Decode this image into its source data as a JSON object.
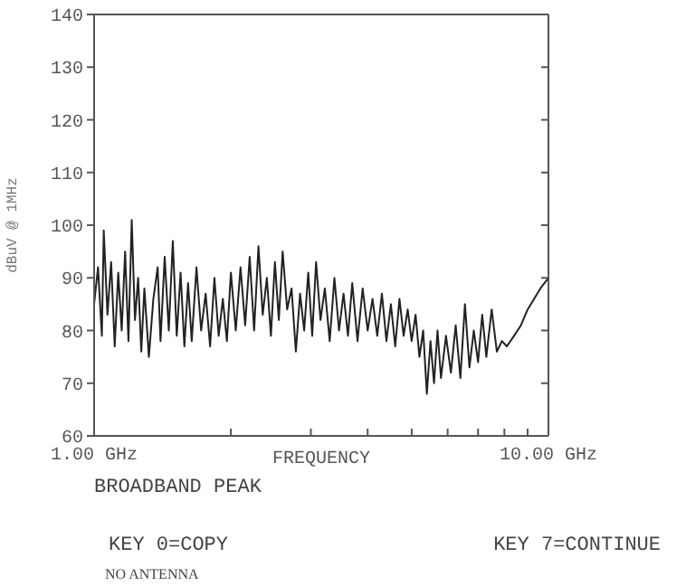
{
  "chart_data": {
    "type": "line",
    "xlabel": "FREQUENCY",
    "ylabel": "dBuV @ 1MHz",
    "log": "x",
    "xlim": [
      1,
      10
    ],
    "xticks": [
      {
        "value": 1,
        "label": "1.00 GHz"
      },
      {
        "value": 2,
        "label": null
      },
      {
        "value": 3,
        "label": null
      },
      {
        "value": 4,
        "label": null
      },
      {
        "value": 5,
        "label": null
      },
      {
        "value": 6,
        "label": null
      },
      {
        "value": 7,
        "label": null
      },
      {
        "value": 8,
        "label": null
      },
      {
        "value": 9,
        "label": null
      },
      {
        "value": 10,
        "label": "10.00 GHz"
      }
    ],
    "ylim": [
      60,
      140
    ],
    "yticks": [
      60,
      70,
      80,
      90,
      100,
      110,
      120,
      130,
      140
    ],
    "marker": "none",
    "line_style": "solid",
    "annotations": [
      "BROADBAND PEAK",
      "KEY 0=COPY",
      "KEY 7=CONTINUE",
      "NO ANTENNA"
    ],
    "x": [
      1.0,
      1.02,
      1.04,
      1.05,
      1.07,
      1.09,
      1.11,
      1.13,
      1.15,
      1.17,
      1.19,
      1.21,
      1.23,
      1.25,
      1.27,
      1.29,
      1.32,
      1.35,
      1.38,
      1.4,
      1.43,
      1.46,
      1.49,
      1.52,
      1.55,
      1.58,
      1.61,
      1.64,
      1.68,
      1.72,
      1.76,
      1.8,
      1.84,
      1.88,
      1.92,
      1.96,
      2.0,
      2.05,
      2.1,
      2.15,
      2.2,
      2.25,
      2.3,
      2.35,
      2.4,
      2.45,
      2.5,
      2.55,
      2.6,
      2.66,
      2.72,
      2.78,
      2.84,
      2.9,
      2.96,
      3.02,
      3.08,
      3.15,
      3.22,
      3.3,
      3.38,
      3.46,
      3.54,
      3.62,
      3.7,
      3.8,
      3.9,
      4.0,
      4.1,
      4.2,
      4.3,
      4.4,
      4.5,
      4.6,
      4.7,
      4.8,
      4.9,
      5.0,
      5.1,
      5.2,
      5.3,
      5.4,
      5.5,
      5.6,
      5.7,
      5.8,
      5.95,
      6.1,
      6.25,
      6.4,
      6.55,
      6.7,
      6.85,
      7.0,
      7.15,
      7.3,
      7.5,
      7.7,
      7.9,
      8.1,
      8.4,
      8.7,
      9.0,
      9.3,
      9.6,
      10.0
    ],
    "series": [
      {
        "color": "#222222",
        "values": [
          85,
          92,
          79,
          99,
          83,
          93,
          77,
          91,
          80,
          95,
          78,
          101,
          82,
          90,
          76,
          88,
          75,
          86,
          92,
          78,
          94,
          80,
          97,
          79,
          91,
          77,
          89,
          78,
          92,
          80,
          87,
          77,
          90,
          79,
          86,
          78,
          91,
          80,
          92,
          81,
          94,
          80,
          96,
          83,
          90,
          79,
          93,
          82,
          95,
          84,
          88,
          76,
          87,
          80,
          91,
          79,
          93,
          82,
          88,
          78,
          90,
          80,
          87,
          79,
          89,
          78,
          88,
          80,
          86,
          79,
          87,
          78,
          85,
          77,
          86,
          79,
          84,
          78,
          83,
          75,
          80,
          68,
          78,
          70,
          80,
          71,
          79,
          72,
          81,
          71,
          85,
          73,
          80,
          74,
          83,
          75,
          84,
          76,
          78,
          77,
          79,
          81,
          84,
          86,
          88,
          90
        ]
      }
    ]
  }
}
